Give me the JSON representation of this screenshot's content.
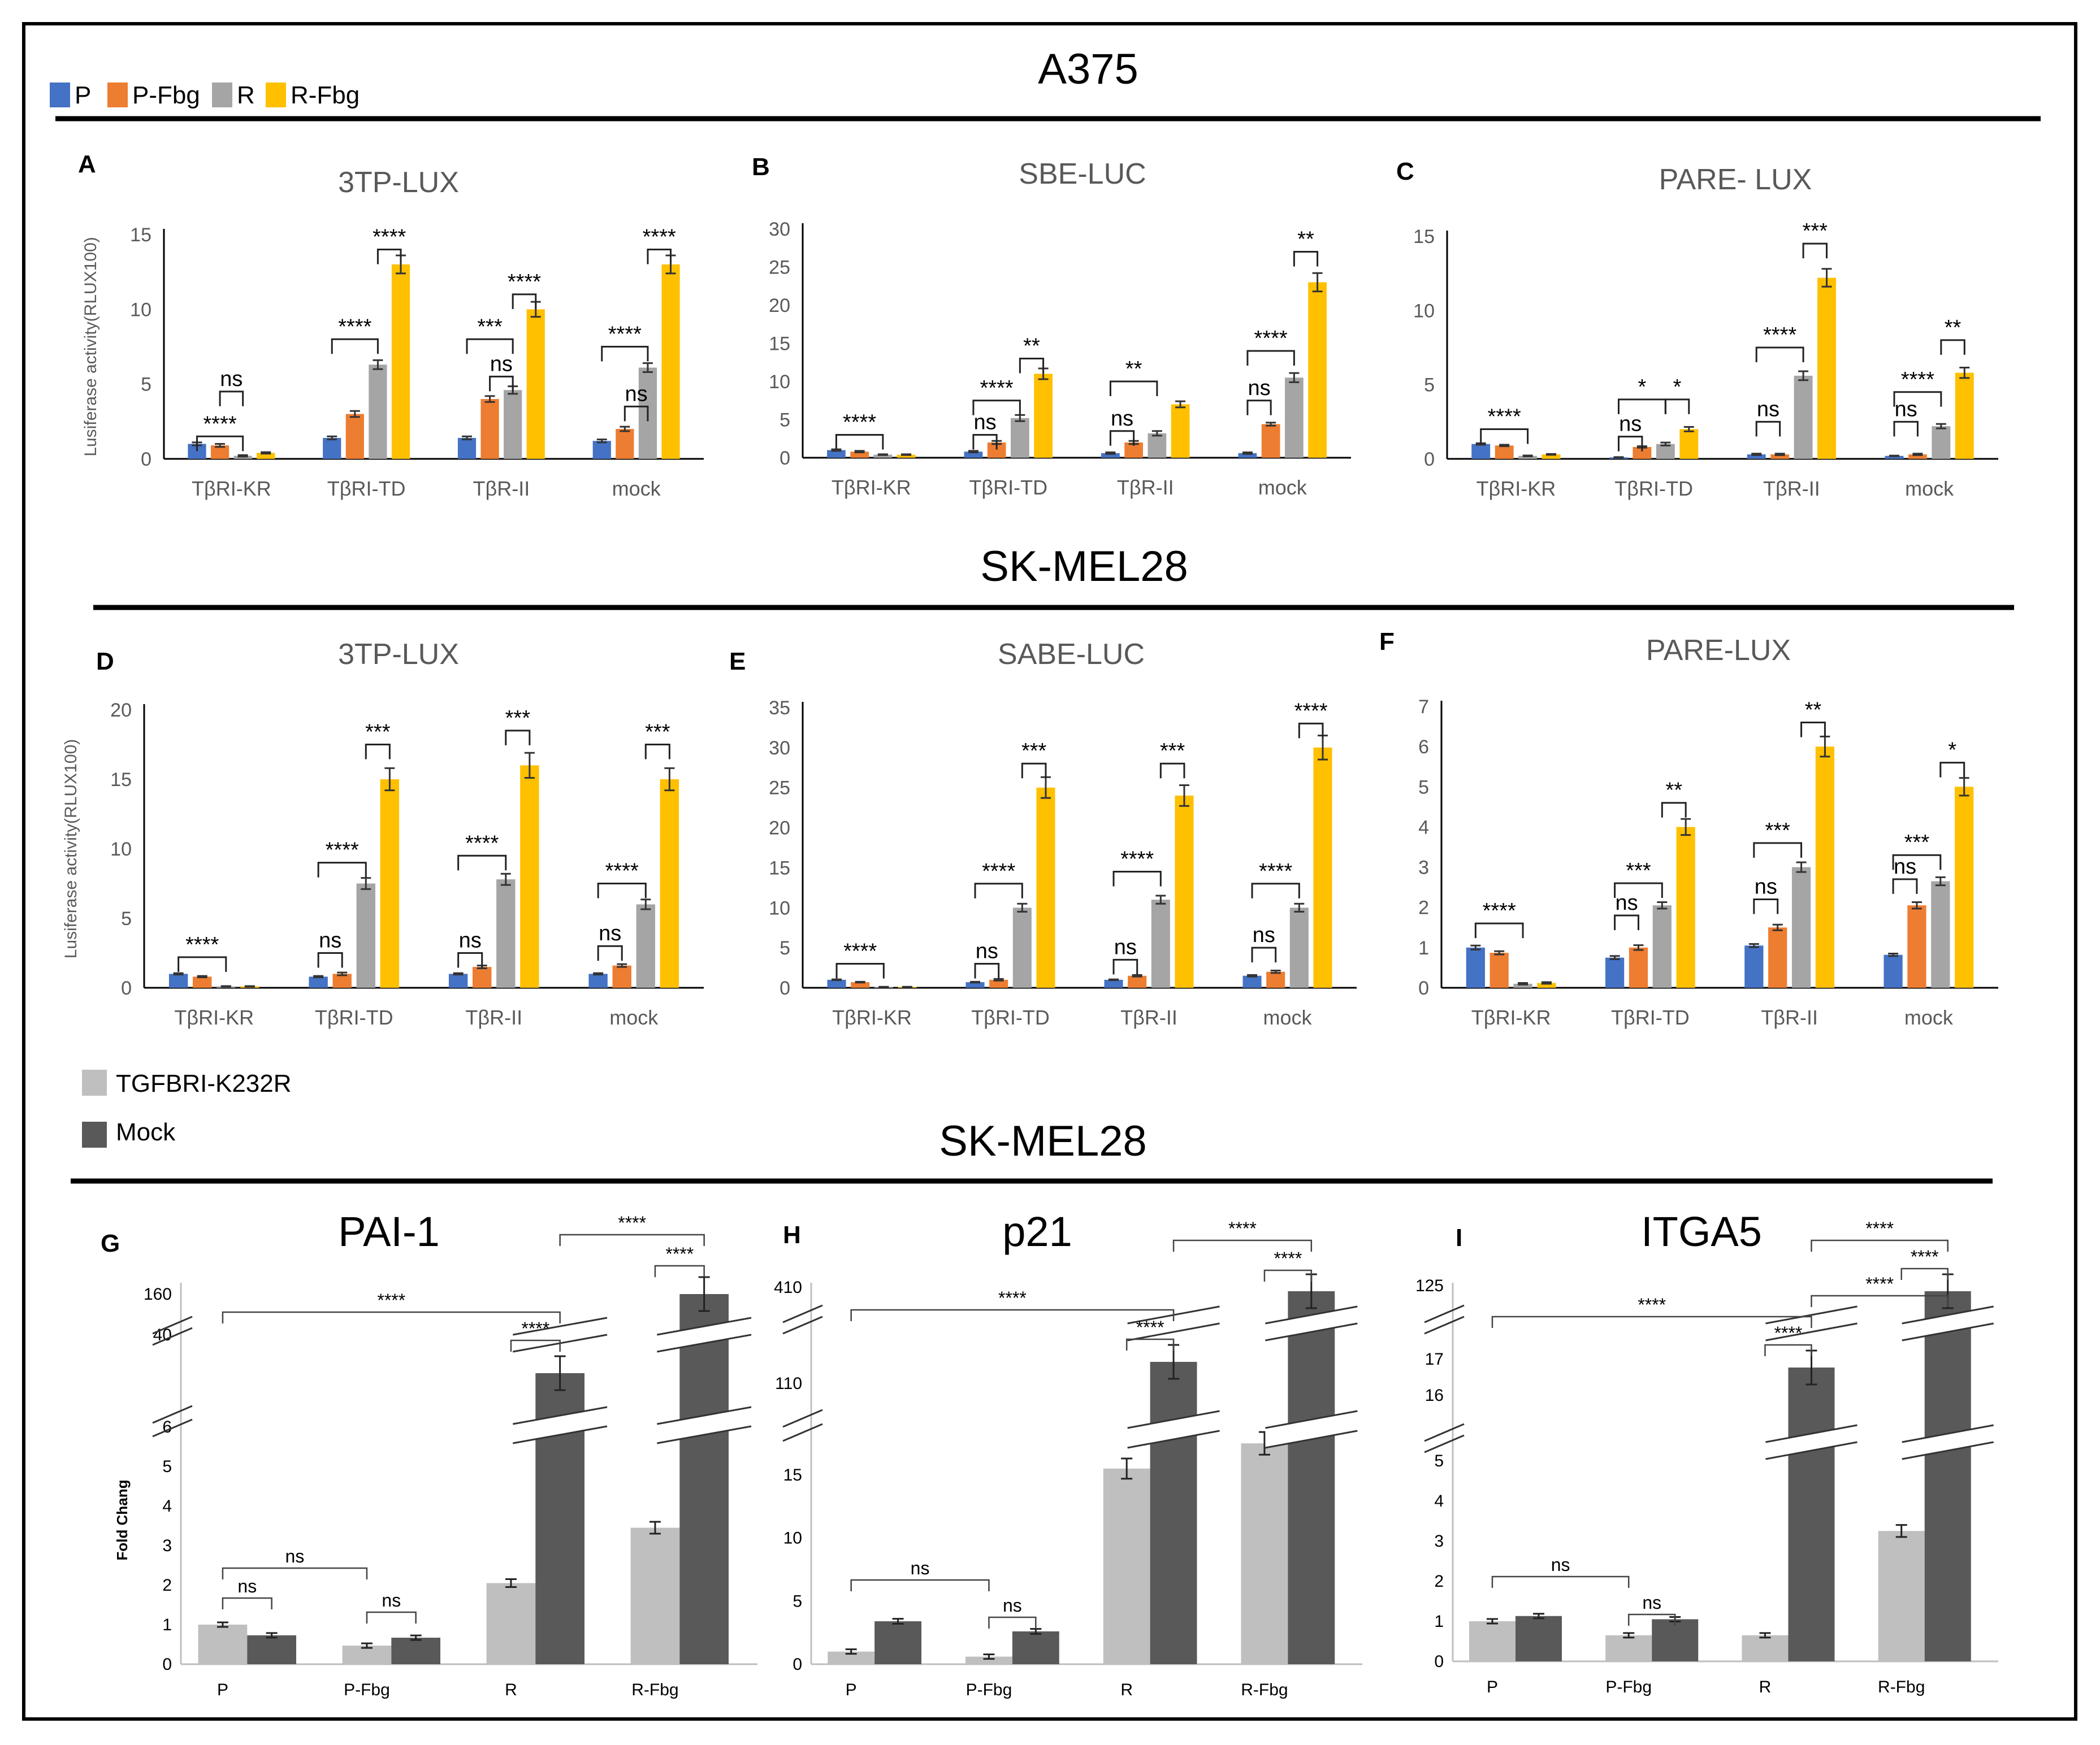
{
  "colors": {
    "P": "#4472C4",
    "P-Fbg": "#ED7D31",
    "R": "#A5A5A5",
    "R-Fbg": "#FFC000",
    "TGFBRI-K232R": "#BFBFBF",
    "Mock": "#595959",
    "axis": "#BFBFBF",
    "frame": "#000000"
  },
  "sections": {
    "a375": "A375",
    "skmel28_luc": "SK-MEL28",
    "skmel28_qpcr": "SK-MEL28"
  },
  "legend_top": [
    {
      "key": "P",
      "label": "P"
    },
    {
      "key": "P-Fbg",
      "label": "P-Fbg"
    },
    {
      "key": "R",
      "label": "R"
    },
    {
      "key": "R-Fbg",
      "label": "R-Fbg"
    }
  ],
  "legend_bottom": [
    {
      "key": "TGFBRI-K232R",
      "label": "TGFBRI-K232R"
    },
    {
      "key": "Mock",
      "label": "Mock"
    }
  ],
  "chart_data": [
    {
      "letter": "A",
      "title": "3TP-LUX",
      "type": "bar",
      "ylabel": "Lusiferase activity(RLUX100)",
      "ylim": [
        0,
        15
      ],
      "yticks": [
        0,
        5,
        10,
        15
      ],
      "categories": [
        "TβRI-KR",
        "TβRI-TD",
        "TβR-II",
        "mock"
      ],
      "series": [
        {
          "name": "P",
          "values": [
            1.0,
            1.4,
            1.4,
            1.2
          ],
          "errors": [
            0.1,
            0.1,
            0.1,
            0.1
          ]
        },
        {
          "name": "P-Fbg",
          "values": [
            0.9,
            3.0,
            4.0,
            2.0
          ],
          "errors": [
            0.1,
            0.2,
            0.2,
            0.15
          ]
        },
        {
          "name": "R",
          "values": [
            0.2,
            6.3,
            4.6,
            6.1
          ],
          "errors": [
            0.05,
            0.3,
            0.25,
            0.3
          ]
        },
        {
          "name": "R-Fbg",
          "values": [
            0.4,
            13.0,
            10.0,
            13.0
          ],
          "errors": [
            0.05,
            0.6,
            0.5,
            0.6
          ]
        }
      ],
      "annotations": [
        {
          "a": 0,
          "b": 2,
          "text": "****",
          "ymin": 1.5
        },
        {
          "a": 1,
          "b": 2,
          "text": "ns",
          "ymin": 4.5
        },
        {
          "a": 0,
          "b": 2,
          "text": "****",
          "ymin": 8.0,
          "cat": 1
        },
        {
          "a": 2,
          "b": 3,
          "text": "****",
          "ymin": 14.0,
          "cat": 1
        },
        {
          "a": 1,
          "b": 2,
          "text": "ns",
          "ymin": 5.5,
          "cat": 2
        },
        {
          "a": 0,
          "b": 2,
          "text": "***",
          "ymin": 8.0,
          "cat": 2
        },
        {
          "a": 2,
          "b": 3,
          "text": "****",
          "ymin": 11.0,
          "cat": 2
        },
        {
          "a": 1,
          "b": 2,
          "text": "ns",
          "ymin": 3.5,
          "cat": 3
        },
        {
          "a": 0,
          "b": 2,
          "text": "****",
          "ymin": 7.5,
          "cat": 3
        },
        {
          "a": 2,
          "b": 3,
          "text": "****",
          "ymin": 14.0,
          "cat": 3
        }
      ]
    },
    {
      "letter": "B",
      "title": "SBE-LUC",
      "type": "bar",
      "ylim": [
        0,
        30
      ],
      "yticks": [
        0,
        5,
        10,
        15,
        20,
        25,
        30
      ],
      "categories": [
        "TβRI-KR",
        "TβRI-TD",
        "TβR-II",
        "mock"
      ],
      "series": [
        {
          "name": "P",
          "values": [
            1.0,
            0.8,
            0.6,
            0.6
          ],
          "errors": [
            0.1,
            0.1,
            0.1,
            0.1
          ]
        },
        {
          "name": "P-Fbg",
          "values": [
            0.8,
            2.0,
            2.0,
            4.4
          ],
          "errors": [
            0.1,
            0.2,
            0.2,
            0.2
          ]
        },
        {
          "name": "R",
          "values": [
            0.4,
            5.2,
            3.2,
            10.5
          ],
          "errors": [
            0.05,
            0.4,
            0.3,
            0.6
          ]
        },
        {
          "name": "R-Fbg",
          "values": [
            0.4,
            11.0,
            7.0,
            23.0
          ],
          "errors": [
            0.05,
            0.7,
            0.4,
            1.2
          ]
        }
      ],
      "annotations": [
        {
          "a": 0,
          "b": 2,
          "text": "****",
          "ymin": 3.0,
          "cat": 0
        },
        {
          "a": 0,
          "b": 1,
          "text": "ns",
          "ymin": 3.0,
          "cat": 1
        },
        {
          "a": 0,
          "b": 2,
          "text": "****",
          "ymin": 7.5,
          "cat": 1
        },
        {
          "a": 2,
          "b": 3,
          "text": "**",
          "ymin": 13.0,
          "cat": 1
        },
        {
          "a": 0,
          "b": 1,
          "text": "ns",
          "ymin": 3.5,
          "cat": 2
        },
        {
          "a": 0,
          "b": 2,
          "text": "**",
          "ymin": 10.0,
          "cat": 2
        },
        {
          "a": 0,
          "b": 1,
          "text": "ns",
          "ymin": 7.5,
          "cat": 3
        },
        {
          "a": 0,
          "b": 2,
          "text": "****",
          "ymin": 14.0,
          "cat": 3
        },
        {
          "a": 2,
          "b": 3,
          "text": "**",
          "ymin": 27.0,
          "cat": 3
        }
      ]
    },
    {
      "letter": "C",
      "title": "PARE- LUX",
      "type": "bar",
      "ylim": [
        0,
        15
      ],
      "yticks": [
        0,
        5,
        10,
        15
      ],
      "categories": [
        "TβRI-KR",
        "TβRI-TD",
        "TβR-II",
        "mock"
      ],
      "series": [
        {
          "name": "P",
          "values": [
            1.0,
            0.1,
            0.3,
            0.2
          ],
          "errors": [
            0.05,
            0.02,
            0.05,
            0.02
          ]
        },
        {
          "name": "P-Fbg",
          "values": [
            0.9,
            0.8,
            0.3,
            0.3
          ],
          "errors": [
            0.05,
            0.05,
            0.05,
            0.05
          ]
        },
        {
          "name": "R",
          "values": [
            0.2,
            1.0,
            5.6,
            2.2
          ],
          "errors": [
            0.03,
            0.1,
            0.3,
            0.15
          ]
        },
        {
          "name": "R-Fbg",
          "values": [
            0.3,
            2.0,
            12.2,
            5.8
          ],
          "errors": [
            0.03,
            0.15,
            0.6,
            0.35
          ]
        }
      ],
      "annotations": [
        {
          "a": 0,
          "b": 2,
          "text": "****",
          "ymin": 2.0,
          "cat": 0
        },
        {
          "a": 0,
          "b": 1,
          "text": "ns",
          "ymin": 1.5,
          "cat": 1
        },
        {
          "a": 0,
          "b": 2,
          "text": "*",
          "ymin": 4.0,
          "cat": 1
        },
        {
          "a": 2,
          "b": 3,
          "text": "*",
          "ymin": 4.0,
          "cat": 1
        },
        {
          "a": 0,
          "b": 1,
          "text": "ns",
          "ymin": 2.5,
          "cat": 2
        },
        {
          "a": 0,
          "b": 2,
          "text": "****",
          "ymin": 7.5,
          "cat": 2
        },
        {
          "a": 2,
          "b": 3,
          "text": "***",
          "ymin": 14.5,
          "cat": 2
        },
        {
          "a": 0,
          "b": 1,
          "text": "ns",
          "ymin": 2.5,
          "cat": 3
        },
        {
          "a": 0,
          "b": 2,
          "text": "****",
          "ymin": 4.5,
          "cat": 3
        },
        {
          "a": 2,
          "b": 3,
          "text": "**",
          "ymin": 8.0,
          "cat": 3
        }
      ]
    },
    {
      "letter": "D",
      "title": "3TP-LUX",
      "type": "bar",
      "ylabel": "Lusiferase activity(RLUX100)",
      "ylim": [
        0,
        20
      ],
      "yticks": [
        0,
        5,
        10,
        15,
        20
      ],
      "categories": [
        "TβRI-KR",
        "TβRI-TD",
        "TβR-II",
        "mock"
      ],
      "series": [
        {
          "name": "P",
          "values": [
            1.0,
            0.8,
            1.0,
            1.0
          ],
          "errors": [
            0.05,
            0.05,
            0.05,
            0.05
          ]
        },
        {
          "name": "P-Fbg",
          "values": [
            0.8,
            1.0,
            1.5,
            1.6
          ],
          "errors": [
            0.05,
            0.1,
            0.1,
            0.1
          ]
        },
        {
          "name": "R",
          "values": [
            0.1,
            7.5,
            7.8,
            6.0
          ],
          "errors": [
            0.02,
            0.4,
            0.4,
            0.35
          ]
        },
        {
          "name": "R-Fbg",
          "values": [
            0.1,
            15.0,
            16.0,
            15.0
          ],
          "errors": [
            0.02,
            0.8,
            0.9,
            0.8
          ]
        }
      ],
      "annotations": [
        {
          "a": 0,
          "b": 2,
          "text": "****",
          "ymin": 2.2,
          "cat": 0
        },
        {
          "a": 0,
          "b": 1,
          "text": "ns",
          "ymin": 2.5,
          "cat": 1
        },
        {
          "a": 0,
          "b": 2,
          "text": "****",
          "ymin": 9.0,
          "cat": 1
        },
        {
          "a": 2,
          "b": 3,
          "text": "***",
          "ymin": 17.5,
          "cat": 1
        },
        {
          "a": 0,
          "b": 1,
          "text": "ns",
          "ymin": 2.5,
          "cat": 2
        },
        {
          "a": 0,
          "b": 2,
          "text": "****",
          "ymin": 9.5,
          "cat": 2
        },
        {
          "a": 2,
          "b": 3,
          "text": "***",
          "ymin": 18.5,
          "cat": 2
        },
        {
          "a": 0,
          "b": 1,
          "text": "ns",
          "ymin": 3.0,
          "cat": 3
        },
        {
          "a": 0,
          "b": 2,
          "text": "****",
          "ymin": 7.5,
          "cat": 3
        },
        {
          "a": 2,
          "b": 3,
          "text": "***",
          "ymin": 17.5,
          "cat": 3
        }
      ]
    },
    {
      "letter": "E",
      "title": "SABE-LUC",
      "type": "bar",
      "ylim": [
        0,
        35
      ],
      "yticks": [
        0,
        5,
        10,
        15,
        20,
        25,
        30,
        35
      ],
      "categories": [
        "TβRI-KR",
        "TβRI-TD",
        "TβR-II",
        "mock"
      ],
      "series": [
        {
          "name": "P",
          "values": [
            1.0,
            0.7,
            1.0,
            1.5
          ],
          "errors": [
            0.05,
            0.05,
            0.05,
            0.1
          ]
        },
        {
          "name": "P-Fbg",
          "values": [
            0.7,
            1.0,
            1.5,
            2.0
          ],
          "errors": [
            0.05,
            0.1,
            0.1,
            0.15
          ]
        },
        {
          "name": "R",
          "values": [
            0.1,
            10.0,
            11.0,
            10.0
          ],
          "errors": [
            0.02,
            0.5,
            0.5,
            0.5
          ]
        },
        {
          "name": "R-Fbg",
          "values": [
            0.1,
            25.0,
            24.0,
            30.0
          ],
          "errors": [
            0.02,
            1.3,
            1.3,
            1.5
          ]
        }
      ],
      "annotations": [
        {
          "a": 0,
          "b": 2,
          "text": "****",
          "ymin": 3.0,
          "cat": 0
        },
        {
          "a": 0,
          "b": 1,
          "text": "ns",
          "ymin": 3.0,
          "cat": 1
        },
        {
          "a": 0,
          "b": 2,
          "text": "****",
          "ymin": 13.0,
          "cat": 1
        },
        {
          "a": 2,
          "b": 3,
          "text": "***",
          "ymin": 28.0,
          "cat": 1
        },
        {
          "a": 0,
          "b": 1,
          "text": "ns",
          "ymin": 3.5,
          "cat": 2
        },
        {
          "a": 0,
          "b": 2,
          "text": "****",
          "ymin": 14.5,
          "cat": 2
        },
        {
          "a": 2,
          "b": 3,
          "text": "***",
          "ymin": 28.0,
          "cat": 2
        },
        {
          "a": 0,
          "b": 1,
          "text": "ns",
          "ymin": 5.0,
          "cat": 3
        },
        {
          "a": 0,
          "b": 2,
          "text": "****",
          "ymin": 13.0,
          "cat": 3
        },
        {
          "a": 2,
          "b": 3,
          "text": "****",
          "ymin": 33.0,
          "cat": 3
        }
      ]
    },
    {
      "letter": "F",
      "title": "PARE-LUX",
      "type": "bar",
      "ylim": [
        0,
        7
      ],
      "yticks": [
        0,
        1,
        2,
        3,
        4,
        5,
        6,
        7
      ],
      "categories": [
        "TβRI-KR",
        "TβRI-TD",
        "TβR-II",
        "mock"
      ],
      "series": [
        {
          "name": "P",
          "values": [
            1.0,
            0.75,
            1.05,
            0.82
          ],
          "errors": [
            0.05,
            0.04,
            0.04,
            0.03
          ]
        },
        {
          "name": "P-Fbg",
          "values": [
            0.87,
            1.0,
            1.5,
            2.05
          ],
          "errors": [
            0.04,
            0.06,
            0.07,
            0.08
          ]
        },
        {
          "name": "R",
          "values": [
            0.1,
            2.05,
            3.0,
            2.65
          ],
          "errors": [
            0.02,
            0.08,
            0.12,
            0.1
          ]
        },
        {
          "name": "R-Fbg",
          "values": [
            0.12,
            4.0,
            6.0,
            5.0
          ],
          "errors": [
            0.02,
            0.2,
            0.25,
            0.22
          ]
        }
      ],
      "annotations": [
        {
          "a": 0,
          "b": 2,
          "text": "****",
          "ymin": 1.6,
          "cat": 0
        },
        {
          "a": 0,
          "b": 1,
          "text": "ns",
          "ymin": 1.8,
          "cat": 1
        },
        {
          "a": 0,
          "b": 2,
          "text": "***",
          "ymin": 2.6,
          "cat": 1
        },
        {
          "a": 2,
          "b": 3,
          "text": "**",
          "ymin": 4.6,
          "cat": 1
        },
        {
          "a": 0,
          "b": 1,
          "text": "ns",
          "ymin": 2.2,
          "cat": 2
        },
        {
          "a": 0,
          "b": 2,
          "text": "***",
          "ymin": 3.6,
          "cat": 2
        },
        {
          "a": 2,
          "b": 3,
          "text": "**",
          "ymin": 6.6,
          "cat": 2
        },
        {
          "a": 0,
          "b": 1,
          "text": "ns",
          "ymin": 2.7,
          "cat": 3
        },
        {
          "a": 0,
          "b": 2,
          "text": "***",
          "ymin": 3.3,
          "cat": 3
        },
        {
          "a": 2,
          "b": 3,
          "text": "*",
          "ymin": 5.6,
          "cat": 3
        }
      ]
    },
    {
      "letter": "G",
      "title": "PAI-1",
      "type": "bar",
      "ylabel": "Fold Chang",
      "yticks": [
        "0",
        "1",
        "2",
        "3",
        "4",
        "5",
        "6"
      ],
      "break_ticks": [
        "40",
        "160"
      ],
      "categories": [
        "P",
        "P-Fbg",
        "R",
        "R-Fbg"
      ],
      "series": [
        {
          "name": "TGFBRI-K232R",
          "values": [
            1.0,
            0.47,
            2.05,
            3.45
          ],
          "errors": [
            0.05,
            0.03,
            0.1,
            0.15
          ]
        },
        {
          "name": "Mock",
          "values": [
            0.73,
            0.67,
            40,
            160
          ],
          "errors": [
            0.05,
            0.03,
            2,
            6
          ]
        }
      ],
      "annotations": [
        "ns",
        "ns",
        "ns",
        "****",
        "****",
        "****",
        "****"
      ]
    },
    {
      "letter": "H",
      "title": "p21",
      "type": "bar",
      "yticks": [
        "0",
        "5",
        "10",
        "15"
      ],
      "break_ticks": [
        "110",
        "410"
      ],
      "categories": [
        "P",
        "P-Fbg",
        "R",
        "R-Fbg"
      ],
      "series": [
        {
          "name": "TGFBRI-K232R",
          "values": [
            1.0,
            0.6,
            15.5,
            17.5
          ],
          "errors": [
            0.1,
            0.05,
            0.8,
            0.9
          ]
        },
        {
          "name": "Mock",
          "values": [
            3.4,
            2.6,
            110,
            410
          ],
          "errors": [
            0.2,
            0.2,
            6,
            15
          ]
        }
      ],
      "annotations": [
        "ns",
        "ns",
        "****",
        "****",
        "****",
        "****"
      ]
    },
    {
      "letter": "I",
      "title": "ITGA5",
      "type": "bar",
      "yticks": [
        "0",
        "1",
        "2",
        "3",
        "4",
        "5"
      ],
      "break_ticks": [
        "16",
        "17",
        "125"
      ],
      "categories": [
        "P",
        "P-Fbg",
        "R",
        "R-Fbg"
      ],
      "series": [
        {
          "name": "TGFBRI-K232R",
          "values": [
            1.0,
            0.65,
            0.65,
            3.25
          ],
          "errors": [
            0.05,
            0.05,
            0.05,
            0.15
          ]
        },
        {
          "name": "Mock",
          "values": [
            1.13,
            1.05,
            16.8,
            125
          ],
          "errors": [
            0.05,
            0.05,
            0.35,
            3
          ]
        }
      ],
      "annotations": [
        "ns",
        "ns",
        "****",
        "****",
        "****",
        "****",
        "****"
      ]
    }
  ]
}
